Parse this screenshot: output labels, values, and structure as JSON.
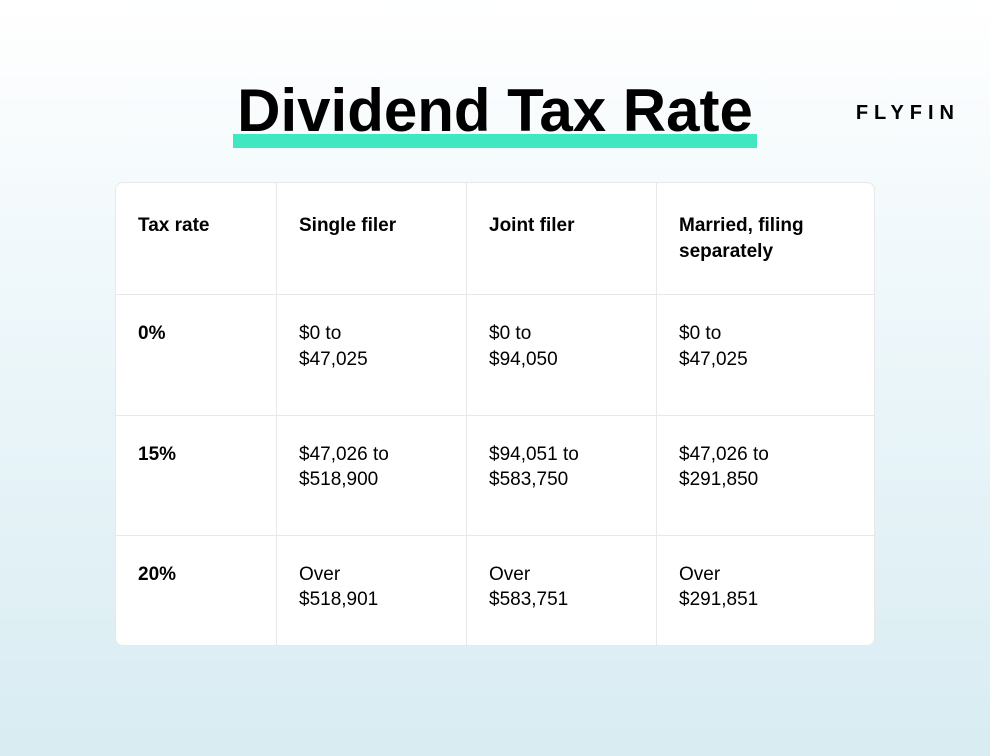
{
  "brand": "FLYFIN",
  "title": "Dividend Tax Rate",
  "styling": {
    "highlight_color": "#3fe8c0",
    "background_gradient": [
      "#ffffff",
      "#f0f8fb",
      "#d8ecf2"
    ],
    "table_bg": "#ffffff",
    "border_color": "#e8e8e8",
    "title_fontsize": 60,
    "cell_fontsize": 19
  },
  "table": {
    "columns": [
      "Tax rate",
      "Single filer",
      "Joint filer",
      "Married, filing\nseparately"
    ],
    "rows": [
      {
        "rate": "0%",
        "single": "$0 to\n$47,025",
        "joint": "$0 to\n$94,050",
        "married_sep": "$0 to\n$47,025"
      },
      {
        "rate": "15%",
        "single": "$47,026 to\n$518,900",
        "joint": "$94,051 to\n$583,750",
        "married_sep": "$47,026 to\n$291,850"
      },
      {
        "rate": "20%",
        "single": "Over\n$518,901",
        "joint": "Over\n$583,751",
        "married_sep": "Over\n$291,851"
      }
    ]
  }
}
